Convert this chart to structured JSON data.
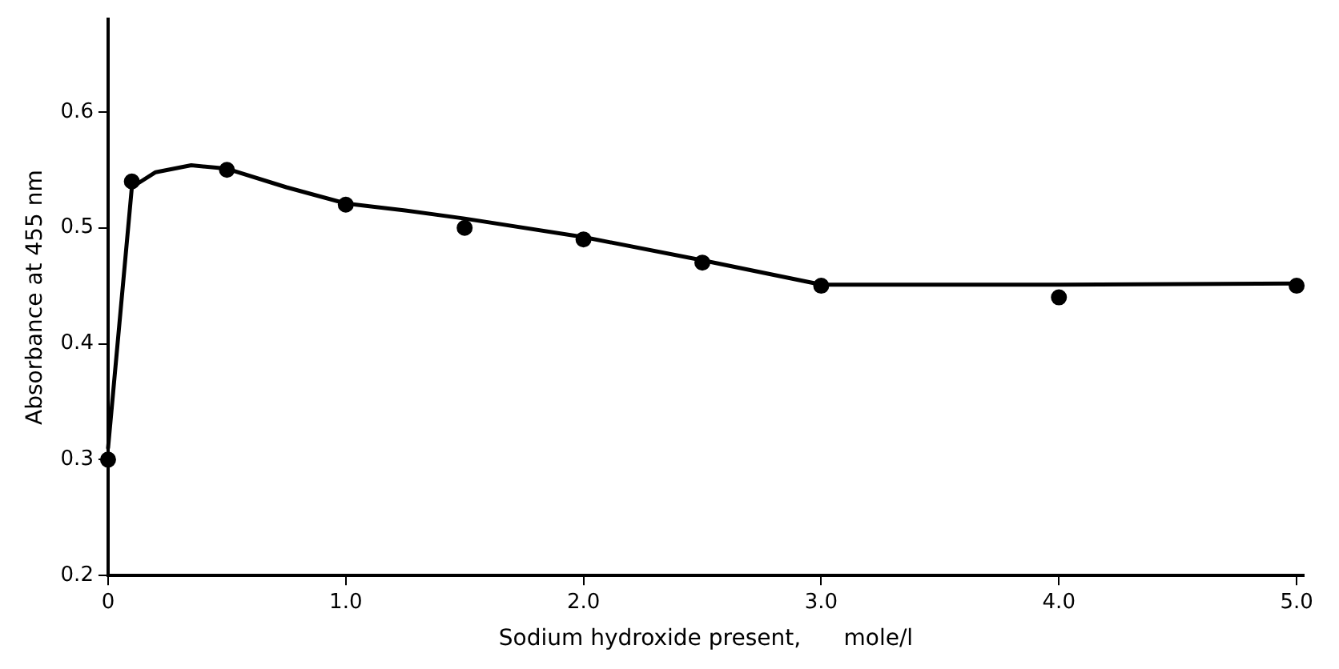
{
  "chart_data": {
    "type": "scatter",
    "xlabel": "Sodium hydroxide present,      mole/l",
    "ylabel": "Absorbance at 455 nm",
    "xlim": [
      0,
      5.03
    ],
    "xticks": [
      0,
      {
        "value": 1,
        "label": "1.0"
      },
      {
        "value": 2,
        "label": "2.0"
      },
      {
        "value": 3,
        "label": "3.0"
      },
      {
        "value": 4,
        "label": "4.0"
      },
      {
        "value": 5,
        "label": "5.0"
      }
    ],
    "ylim": [
      0.2,
      0.68
    ],
    "yticks": [
      0.2,
      0.3,
      0.4,
      0.5,
      0.6
    ],
    "grid": false,
    "legend": false,
    "marker": "circle",
    "series": [
      {
        "type": "scatter",
        "color": "#000000",
        "x": [
          0,
          0.1,
          0.5,
          1,
          1.5,
          2,
          2.5,
          3,
          4,
          5
        ],
        "values": [
          0.3,
          0.54,
          0.55,
          0.52,
          0.5,
          0.49,
          0.47,
          0.45,
          0.44,
          0.45
        ]
      },
      {
        "type": "line",
        "color": "#000000",
        "marker": "none",
        "line_style": "solid",
        "x": [
          0,
          0.1,
          0.2,
          0.35,
          0.5,
          0.75,
          1,
          1.25,
          1.5,
          2,
          2.5,
          3,
          4,
          5
        ],
        "values": [
          0.31,
          0.535,
          0.548,
          0.554,
          0.551,
          0.535,
          0.521,
          0.515,
          0.508,
          0.492,
          0.472,
          0.451,
          0.451,
          0.452
        ]
      }
    ]
  }
}
